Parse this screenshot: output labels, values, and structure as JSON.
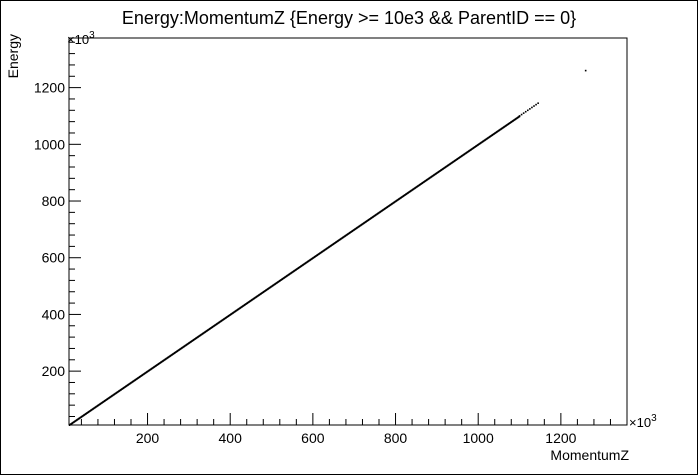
{
  "chart_data": {
    "type": "scatter",
    "title": "Energy:MomentumZ {Energy >= 10e3 && ParentID == 0}",
    "xlabel": "MomentumZ",
    "ylabel": "Energy",
    "x_exponent_base": "×10",
    "x_exponent_power": "3",
    "y_exponent_base": "×10",
    "y_exponent_power": "3",
    "xlim": [
      10,
      1360
    ],
    "ylim": [
      10,
      1375
    ],
    "x_ticks": [
      200,
      400,
      600,
      800,
      1000,
      1200
    ],
    "y_ticks": [
      200,
      400,
      600,
      800,
      1000,
      1200
    ],
    "x_tick_labels": [
      "200",
      "400",
      "600",
      "800",
      "1000",
      "1200"
    ],
    "y_tick_labels": [
      "200",
      "400",
      "600",
      "800",
      "1000",
      "1200"
    ],
    "grid": false,
    "series": [
      {
        "dense_segment": {
          "x_start": 10,
          "x_end": 1100,
          "slope": 1.0
        },
        "sparse_points": [
          [
            1100,
            1100
          ],
          [
            1105,
            1105
          ],
          [
            1110,
            1110
          ],
          [
            1115,
            1115
          ],
          [
            1120,
            1120
          ],
          [
            1125,
            1125
          ],
          [
            1130,
            1130
          ],
          [
            1135,
            1135
          ],
          [
            1140,
            1140
          ],
          [
            1145,
            1145
          ],
          [
            1260,
            1260
          ]
        ]
      }
    ],
    "marker_color": "#000000"
  }
}
